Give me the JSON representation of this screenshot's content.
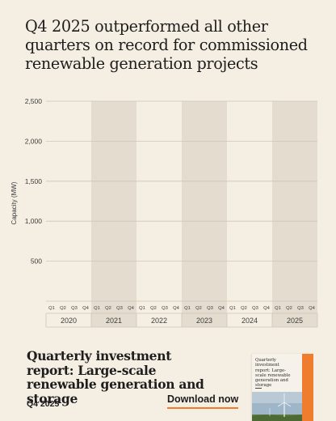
{
  "headline": "Q4 2025 outperformed all other quarters on record for commissioned renewable generation projects",
  "chart_data": {
    "type": "bar",
    "ylabel": "Capacity (MW)",
    "xlabel": "",
    "ylim": [
      0,
      2500
    ],
    "yticks": [
      500,
      1000,
      1500,
      2000,
      2500
    ],
    "ytick_labels": [
      "500",
      "1,000",
      "1,500",
      "2,000",
      "2,500"
    ],
    "grid": true,
    "years": [
      "2020",
      "2021",
      "2022",
      "2023",
      "2024",
      "2025"
    ],
    "quarters": [
      "Q1",
      "Q2",
      "Q3",
      "Q4"
    ],
    "shaded_years": [
      "2021",
      "2023",
      "2025"
    ],
    "series": [
      {
        "values": [
          0,
          0,
          0,
          0,
          0,
          0,
          0,
          0,
          0,
          0,
          0,
          0,
          0,
          0,
          0,
          0,
          0,
          0,
          0,
          0,
          0,
          0,
          0,
          0
        ]
      }
    ],
    "colors": {
      "background": "#f4eee3",
      "shaded_band": "#e3dccf",
      "gridline": "#cdc6b9",
      "axis_text": "#3c3c3c",
      "accent": "#ef7d2d"
    }
  },
  "report": {
    "title": "Quarterly investment report: Large-scale renewable generation and storage",
    "period": "Q4 2025",
    "download_label": "Download now",
    "cover_title": "Quarterly investment report: Large-scale renewable generation and storage"
  }
}
